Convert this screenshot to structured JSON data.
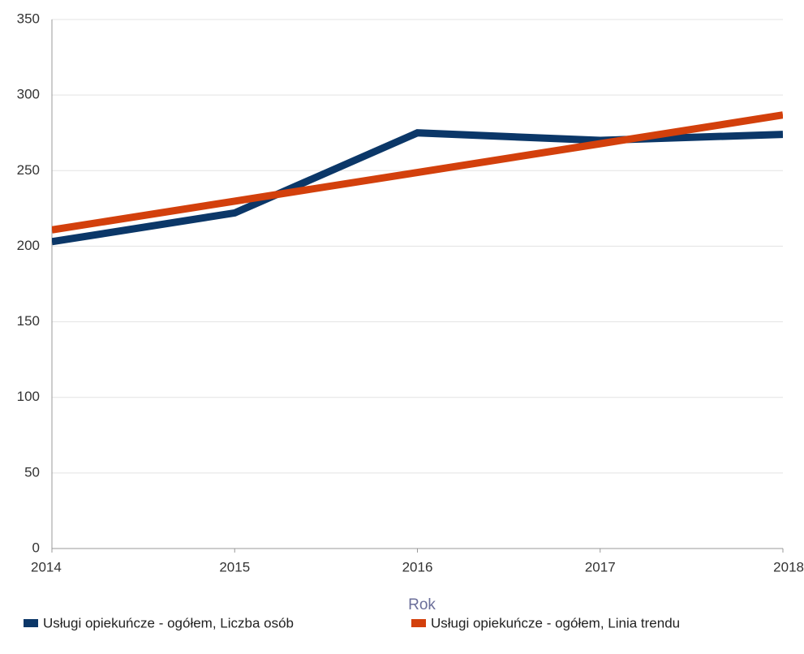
{
  "chart_data": {
    "type": "line",
    "x": [
      2014,
      2015,
      2016,
      2017,
      2018
    ],
    "xlabel": "Rok",
    "xlim": [
      2014,
      2018
    ],
    "xticks": [
      2014,
      2015,
      2016,
      2017,
      2018
    ],
    "ylim": [
      0,
      350
    ],
    "yticks": [
      0,
      50,
      100,
      150,
      200,
      250,
      300,
      350
    ],
    "grid": true,
    "legend": "bottom",
    "series": [
      {
        "name": "Usługi opiekuńcze - ogółem, Liczba osób",
        "color": "#0b3768",
        "values": [
          203,
          222,
          275,
          270,
          274
        ]
      },
      {
        "name": "Usługi opiekuńcze - ogółem, Linia trendu",
        "color": "#d3400c",
        "values": [
          210.8,
          229.8,
          248.8,
          267.8,
          286.8
        ]
      }
    ]
  }
}
